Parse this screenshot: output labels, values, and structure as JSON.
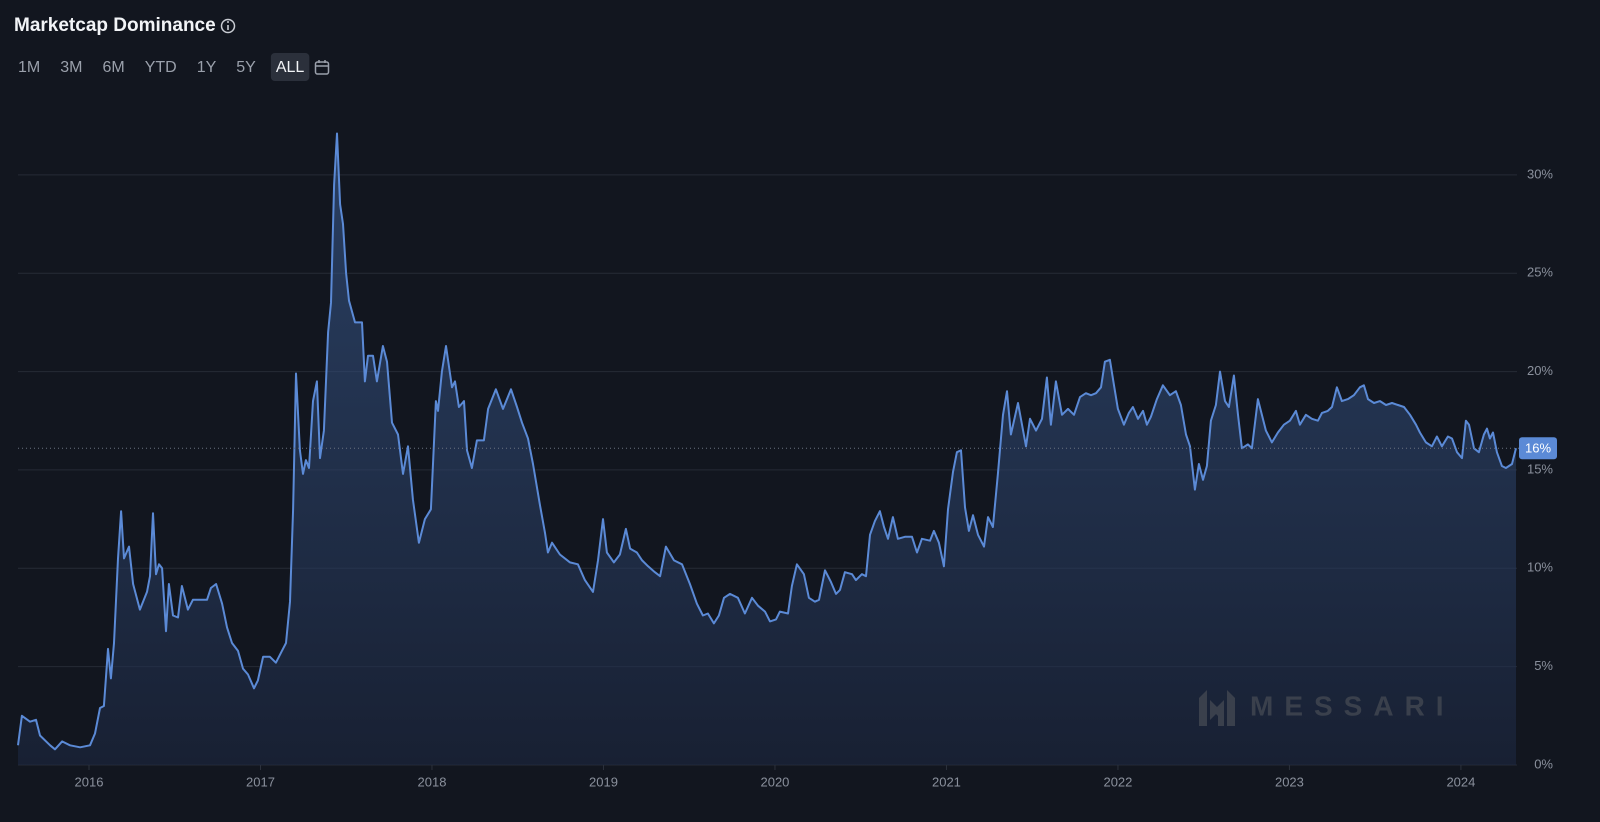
{
  "chart_data": {
    "type": "area",
    "title": "Marketcap Dominance",
    "ranges": [
      "1M",
      "3M",
      "6M",
      "YTD",
      "1Y",
      "5Y",
      "ALL"
    ],
    "active_range": "ALL",
    "color": "#5b8ad6",
    "grid": true,
    "xlim": [
      2015.586,
      2024.327
    ],
    "xticks": [
      2016,
      2017,
      2018,
      2019,
      2020,
      2021,
      2022,
      2023,
      2024
    ],
    "ylim": [
      0,
      33.5
    ],
    "yticks": [
      {
        "value": 0,
        "label": "0%"
      },
      {
        "value": 5,
        "label": "5%"
      },
      {
        "value": 10,
        "label": "10%"
      },
      {
        "value": 15,
        "label": "15%"
      },
      {
        "value": 20,
        "label": "20%"
      },
      {
        "value": 25,
        "label": "25%"
      },
      {
        "value": 30,
        "label": "30%"
      }
    ],
    "current": {
      "value": 16.1,
      "label": "16%"
    },
    "watermark": "MESSARI",
    "x": [
      2015.586,
      2015.609,
      2015.656,
      2015.691,
      2015.714,
      2015.773,
      2015.802,
      2015.843,
      2015.889,
      2015.948,
      2016.006,
      2016.035,
      2016.064,
      2016.087,
      2016.111,
      2016.128,
      2016.146,
      2016.169,
      2016.187,
      2016.204,
      2016.233,
      2016.257,
      2016.297,
      2016.338,
      2016.356,
      2016.373,
      2016.391,
      2016.408,
      2016.426,
      2016.449,
      2016.466,
      2016.49,
      2016.519,
      2016.542,
      2016.577,
      2016.606,
      2016.647,
      2016.688,
      2016.711,
      2016.741,
      2016.776,
      2016.805,
      2016.834,
      2016.869,
      2016.898,
      2016.927,
      2016.962,
      2016.985,
      2017.015,
      2017.055,
      2017.09,
      2017.125,
      2017.149,
      2017.172,
      2017.19,
      2017.207,
      2017.23,
      2017.248,
      2017.265,
      2017.283,
      2017.306,
      2017.329,
      2017.347,
      2017.37,
      2017.394,
      2017.411,
      2017.429,
      2017.446,
      2017.464,
      2017.481,
      2017.499,
      2017.516,
      2017.551,
      2017.592,
      2017.609,
      2017.627,
      2017.656,
      2017.679,
      2017.714,
      2017.738,
      2017.767,
      2017.802,
      2017.831,
      2017.86,
      2017.889,
      2017.924,
      2017.959,
      2017.994,
      2018.023,
      2018.035,
      2018.058,
      2018.082,
      2018.117,
      2018.134,
      2018.157,
      2018.187,
      2018.204,
      2018.233,
      2018.262,
      2018.303,
      2018.327,
      2018.373,
      2018.414,
      2018.461,
      2018.496,
      2018.525,
      2018.56,
      2018.589,
      2018.63,
      2018.659,
      2018.676,
      2018.7,
      2018.746,
      2018.805,
      2018.851,
      2018.892,
      2018.939,
      2018.968,
      2018.997,
      2019.02,
      2019.061,
      2019.096,
      2019.131,
      2019.155,
      2019.195,
      2019.225,
      2019.26,
      2019.3,
      2019.33,
      2019.364,
      2019.411,
      2019.458,
      2019.504,
      2019.545,
      2019.58,
      2019.609,
      2019.644,
      2019.673,
      2019.703,
      2019.738,
      2019.784,
      2019.825,
      2019.866,
      2019.901,
      2019.942,
      2019.971,
      2020.006,
      2020.029,
      2020.076,
      2020.099,
      2020.128,
      2020.169,
      2020.198,
      2020.233,
      2020.257,
      2020.292,
      2020.327,
      2020.356,
      2020.379,
      2020.408,
      2020.449,
      2020.472,
      2020.507,
      2020.531,
      2020.554,
      2020.583,
      2020.612,
      2020.636,
      2020.659,
      2020.688,
      2020.717,
      2020.758,
      2020.799,
      2020.828,
      2020.857,
      2020.904,
      2020.927,
      2020.956,
      2020.985,
      2021.009,
      2021.038,
      2021.061,
      2021.085,
      2021.108,
      2021.131,
      2021.155,
      2021.184,
      2021.219,
      2021.242,
      2021.271,
      2021.3,
      2021.33,
      2021.353,
      2021.376,
      2021.417,
      2021.464,
      2021.487,
      2021.522,
      2021.557,
      2021.586,
      2021.609,
      2021.638,
      2021.674,
      2021.709,
      2021.744,
      2021.779,
      2021.813,
      2021.843,
      2021.872,
      2021.901,
      2021.924,
      2021.953,
      2021.977,
      2022.0,
      2022.035,
      2022.064,
      2022.087,
      2022.117,
      2022.146,
      2022.169,
      2022.192,
      2022.227,
      2022.262,
      2022.303,
      2022.338,
      2022.367,
      2022.397,
      2022.42,
      2022.449,
      2022.472,
      2022.496,
      2022.519,
      2022.542,
      2022.571,
      2022.595,
      2022.624,
      2022.647,
      2022.676,
      2022.7,
      2022.723,
      2022.758,
      2022.781,
      2022.816,
      2022.863,
      2022.898,
      2022.933,
      2022.968,
      2023.003,
      2023.038,
      2023.061,
      2023.096,
      2023.131,
      2023.166,
      2023.19,
      2023.224,
      2023.248,
      2023.277,
      2023.306,
      2023.341,
      2023.376,
      2023.411,
      2023.434,
      2023.458,
      2023.493,
      2023.528,
      2023.563,
      2023.598,
      2023.633,
      2023.668,
      2023.703,
      2023.738,
      2023.761,
      2023.796,
      2023.831,
      2023.86,
      2023.889,
      2023.924,
      2023.948,
      2023.977,
      2024.006,
      2024.029,
      2024.047,
      2024.076,
      2024.105,
      2024.134,
      2024.152,
      2024.169,
      2024.187,
      2024.21,
      2024.239,
      2024.262,
      2024.298,
      2024.321
    ],
    "values": [
      1.0,
      2.5,
      2.2,
      2.3,
      1.5,
      1.0,
      0.8,
      1.2,
      1.0,
      0.9,
      1.0,
      1.6,
      2.9,
      3.0,
      5.9,
      4.4,
      6.2,
      10.5,
      12.9,
      10.5,
      11.1,
      9.2,
      7.9,
      8.8,
      9.6,
      12.8,
      9.7,
      10.2,
      10.0,
      6.8,
      9.2,
      7.6,
      7.5,
      9.1,
      7.9,
      8.4,
      8.4,
      8.4,
      9.0,
      9.2,
      8.2,
      7.0,
      6.2,
      5.8,
      4.9,
      4.6,
      3.9,
      4.3,
      5.5,
      5.5,
      5.2,
      5.8,
      6.2,
      8.3,
      13.0,
      19.9,
      16.0,
      14.8,
      15.5,
      15.1,
      18.5,
      19.5,
      15.6,
      17.0,
      22.0,
      23.5,
      29.5,
      32.1,
      28.5,
      27.5,
      25.0,
      23.6,
      22.5,
      22.5,
      19.5,
      20.8,
      20.8,
      19.5,
      21.3,
      20.5,
      17.4,
      16.8,
      14.8,
      16.2,
      13.5,
      11.3,
      12.5,
      13.0,
      18.5,
      18.0,
      20.0,
      21.3,
      19.2,
      19.5,
      18.2,
      18.5,
      16.0,
      15.1,
      16.5,
      16.5,
      18.1,
      19.1,
      18.1,
      19.1,
      18.2,
      17.4,
      16.6,
      15.3,
      13.2,
      11.8,
      10.8,
      11.3,
      10.7,
      10.3,
      10.2,
      9.4,
      8.8,
      10.4,
      12.5,
      10.8,
      10.3,
      10.7,
      12.0,
      11.0,
      10.8,
      10.4,
      10.1,
      9.8,
      9.6,
      11.1,
      10.4,
      10.2,
      9.2,
      8.2,
      7.6,
      7.7,
      7.2,
      7.6,
      8.5,
      8.7,
      8.5,
      7.7,
      8.5,
      8.1,
      7.8,
      7.3,
      7.4,
      7.8,
      7.7,
      9.1,
      10.2,
      9.7,
      8.5,
      8.3,
      8.4,
      9.9,
      9.3,
      8.7,
      8.9,
      9.8,
      9.7,
      9.4,
      9.7,
      9.6,
      11.7,
      12.4,
      12.9,
      12.1,
      11.5,
      12.6,
      11.5,
      11.6,
      11.6,
      10.8,
      11.5,
      11.4,
      11.9,
      11.3,
      10.1,
      13.0,
      14.9,
      15.9,
      16.0,
      13.1,
      11.9,
      12.7,
      11.7,
      11.1,
      12.6,
      12.1,
      14.8,
      17.8,
      19.0,
      16.8,
      18.4,
      16.2,
      17.6,
      17.0,
      17.6,
      19.7,
      17.3,
      19.5,
      17.8,
      18.1,
      17.8,
      18.7,
      18.9,
      18.8,
      18.9,
      19.2,
      20.5,
      20.6,
      19.3,
      18.1,
      17.3,
      17.9,
      18.2,
      17.6,
      18.0,
      17.3,
      17.7,
      18.6,
      19.3,
      18.8,
      19.0,
      18.3,
      16.8,
      16.2,
      14.0,
      15.3,
      14.5,
      15.2,
      17.5,
      18.3,
      20.0,
      18.5,
      18.2,
      19.8,
      17.8,
      16.1,
      16.3,
      16.1,
      18.6,
      17.0,
      16.4,
      16.9,
      17.3,
      17.5,
      18.0,
      17.3,
      17.8,
      17.6,
      17.5,
      17.9,
      18.0,
      18.2,
      19.2,
      18.5,
      18.6,
      18.8,
      19.2,
      19.3,
      18.6,
      18.4,
      18.5,
      18.3,
      18.4,
      18.3,
      18.2,
      17.8,
      17.3,
      16.9,
      16.4,
      16.2,
      16.7,
      16.2,
      16.7,
      16.6,
      15.9,
      15.6,
      17.5,
      17.3,
      16.1,
      15.9,
      16.8,
      17.1,
      16.6,
      16.9,
      15.9,
      15.2,
      15.1,
      15.3,
      16.1
    ]
  }
}
